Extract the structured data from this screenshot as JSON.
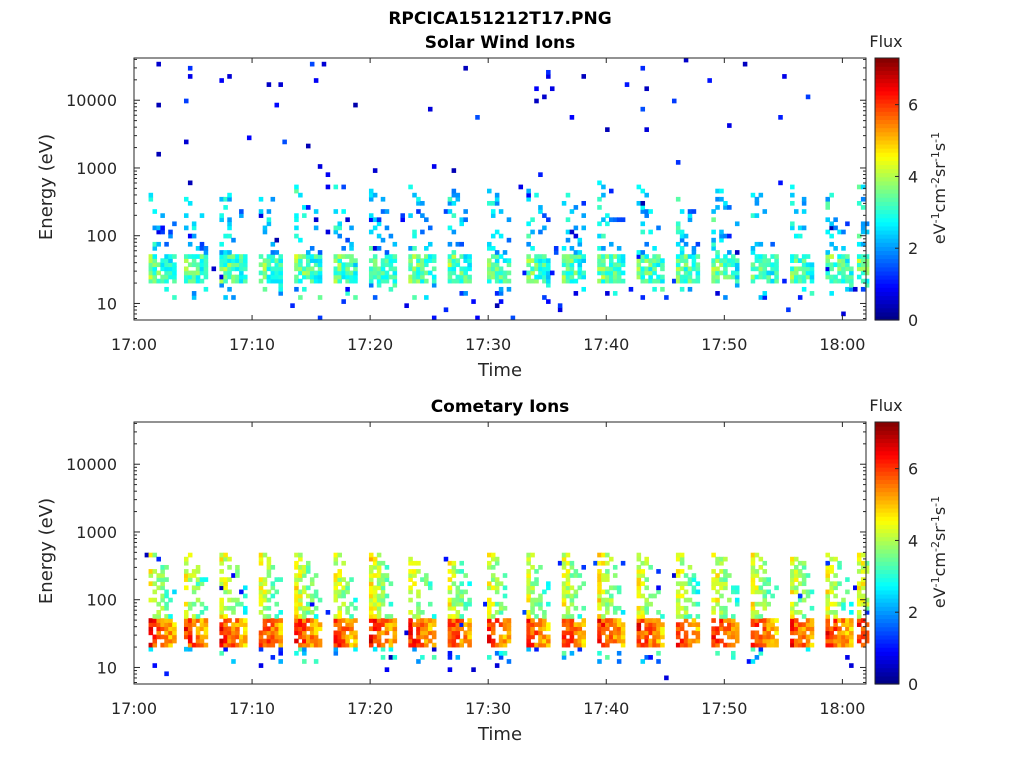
{
  "figure": {
    "title": "RPCICA151212T17.PNG"
  },
  "chart_data": [
    {
      "type": "heatmap",
      "title": "Solar Wind Ions",
      "xlabel": "Time",
      "ylabel": "Energy (eV)",
      "x_range": [
        "17:00",
        "18:02"
      ],
      "x_ticks": [
        "17:00",
        "17:10",
        "17:20",
        "17:30",
        "17:40",
        "17:50",
        "18:00"
      ],
      "y_scale": "log",
      "y_range": [
        5.7,
        42000
      ],
      "y_ticks": [
        "10",
        "100",
        "1000",
        "10000"
      ],
      "colorbar": {
        "title": "Flux",
        "label": "eV-1cm-2sr-1s-1",
        "label_parts": {
          "a": "eV",
          "a_sup": "-1",
          "b": "cm",
          "b_sup": "-2",
          "c": "sr",
          "c_sup": "-1",
          "d": "s",
          "d_sup": "-1"
        },
        "range": [
          0,
          7.3
        ],
        "ticks": [
          "0",
          "2",
          "4",
          "6"
        ],
        "colormap": "jet"
      },
      "bursts_start_minutes": [
        1.1,
        4.0,
        7.1,
        10.3,
        13.5,
        16.6,
        19.9,
        23.1,
        26.3,
        29.6,
        32.9,
        36.0,
        39.2,
        42.4,
        45.6,
        48.9,
        52.1,
        55.3,
        58.4,
        61.2
      ],
      "core_energy_eV": [
        25,
        40
      ],
      "core_flux_range": [
        2.8,
        4.4
      ],
      "scatter_flux_range": [
        0.3,
        1.5
      ],
      "scatter_density": 0.7,
      "tail_max_energy_eV": 40000
    },
    {
      "type": "heatmap",
      "title": "Cometary Ions",
      "xlabel": "Time",
      "ylabel": "Energy (eV)",
      "x_range": [
        "17:00",
        "18:02"
      ],
      "x_ticks": [
        "17:00",
        "17:10",
        "17:20",
        "17:30",
        "17:40",
        "17:50",
        "18:00"
      ],
      "y_scale": "log",
      "y_range": [
        5.7,
        42000
      ],
      "y_ticks": [
        "10",
        "100",
        "1000",
        "10000"
      ],
      "colorbar": {
        "title": "Flux",
        "label": "eV-1cm-2sr-1s-1",
        "label_parts": {
          "a": "eV",
          "a_sup": "-1",
          "b": "cm",
          "b_sup": "-2",
          "c": "sr",
          "c_sup": "-1",
          "d": "s",
          "d_sup": "-1"
        },
        "range": [
          0,
          7.3
        ],
        "ticks": [
          "0",
          "2",
          "4",
          "6"
        ],
        "colormap": "jet"
      },
      "bursts_start_minutes": [
        1.1,
        4.0,
        7.1,
        10.3,
        13.5,
        16.6,
        19.9,
        23.1,
        26.3,
        29.6,
        32.9,
        36.0,
        39.2,
        42.4,
        45.6,
        48.9,
        52.1,
        55.3,
        58.4,
        61.2
      ],
      "core_energy_eV": [
        25,
        40
      ],
      "core_flux_range": [
        5.6,
        6.9
      ],
      "scatter_flux_range": [
        0.3,
        1.5
      ],
      "scatter_density": 0.35,
      "tail_max_energy_eV": 500
    }
  ]
}
